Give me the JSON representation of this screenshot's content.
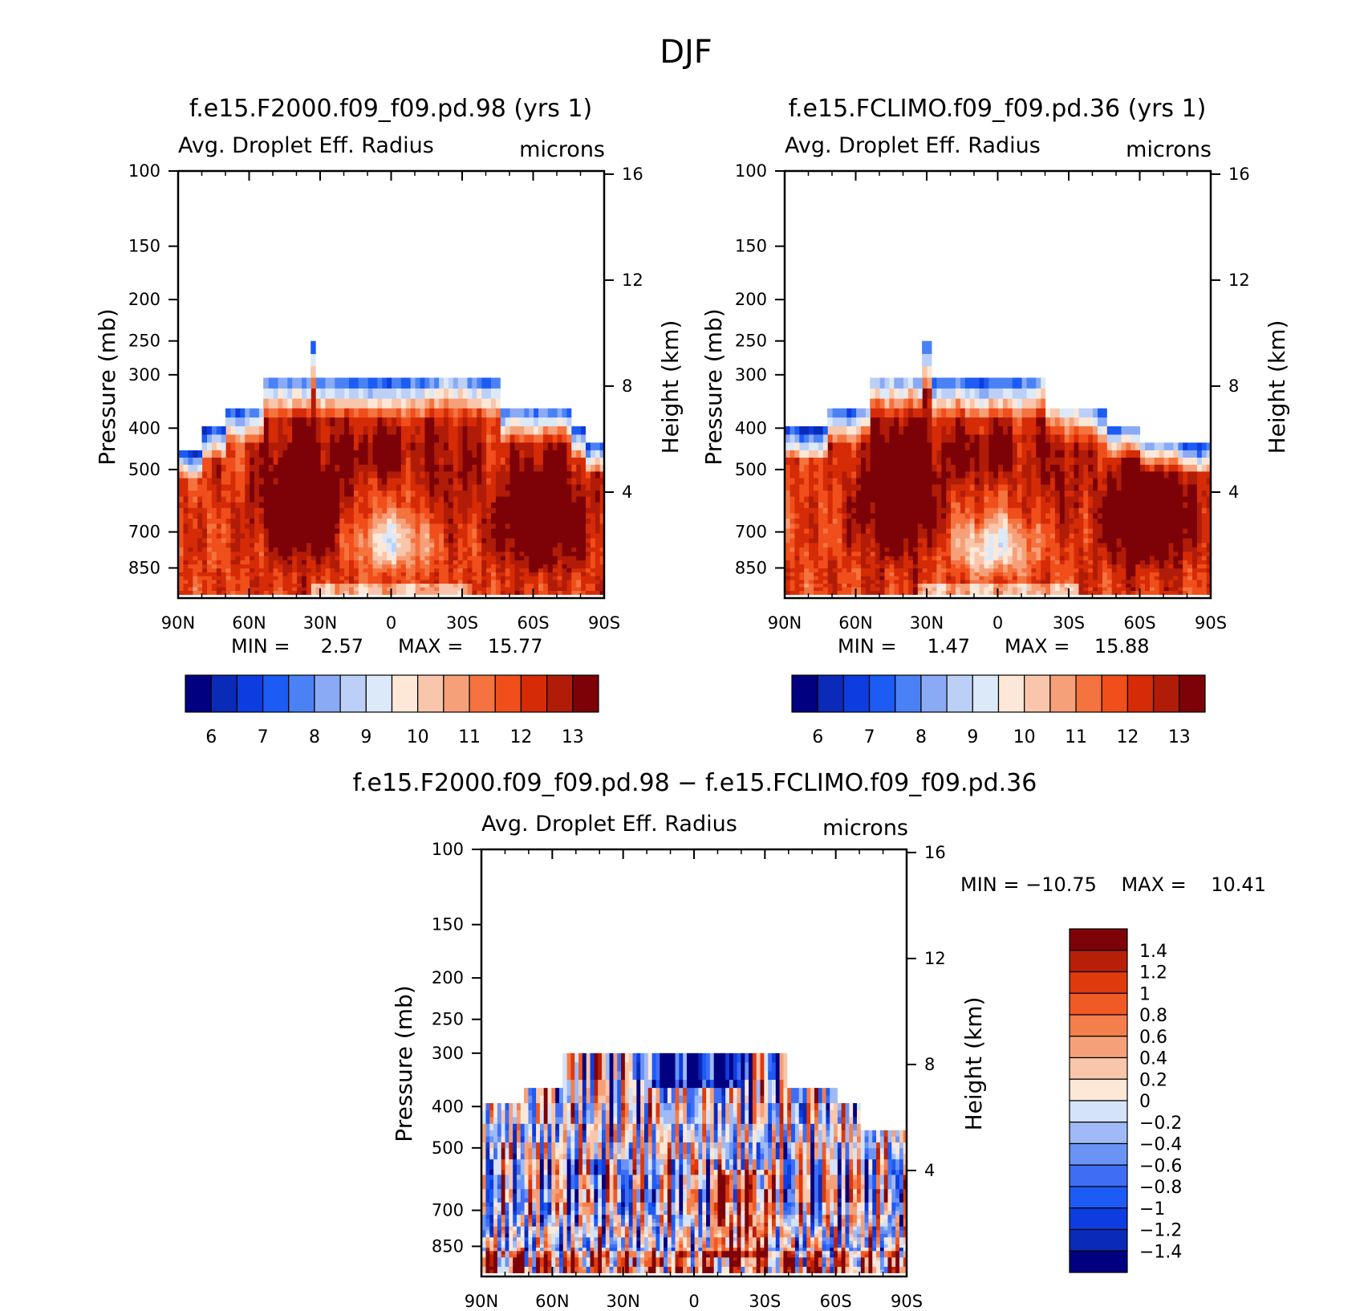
{
  "figure": {
    "title": "DJF",
    "colors": {
      "abs_scale": [
        "#000080",
        "#0a2ab8",
        "#0d3de0",
        "#1c5cf5",
        "#4a82f5",
        "#8aaaf5",
        "#bcd0f7",
        "#dce9f8",
        "#fde8d8",
        "#f9c6ab",
        "#f6a07a",
        "#f4733f",
        "#f04e1b",
        "#d52b07",
        "#b01c08",
        "#7d0208"
      ],
      "diff_scale": [
        "#000080",
        "#0a2ab8",
        "#0d3de0",
        "#1c5cf5",
        "#3f6ef5",
        "#6a93f5",
        "#9fbaf6",
        "#d4e3f8",
        "#fde8d8",
        "#f9c6ab",
        "#f6a07a",
        "#f47e4c",
        "#f05a25",
        "#de3a0c",
        "#b81f08",
        "#7d0208"
      ]
    }
  },
  "chart_data": [
    {
      "type": "heatmap",
      "id": "panel-1",
      "title": "f.e15.F2000.f09_f09.pd.98 (yrs 1)",
      "left_label": "Avg. Droplet Eff. Radius",
      "right_label": "microns",
      "ylabel": "Pressure (mb)",
      "y2label": "Height (km)",
      "xticks": [
        "90N",
        "60N",
        "30N",
        "0",
        "30S",
        "60S",
        "90S"
      ],
      "yticks": [
        100,
        150,
        200,
        250,
        300,
        400,
        500,
        700,
        850
      ],
      "y2ticks": [
        16,
        12,
        8,
        4
      ],
      "ylim": [
        100,
        1000
      ],
      "xlim": [
        90,
        -90
      ],
      "min_text": "MIN =     2.57",
      "max_text": "MAX =    15.77",
      "min": 2.57,
      "max": 15.77,
      "colorbar_labels": [
        "6",
        "7",
        "8",
        "9",
        "10",
        "11",
        "12",
        "13"
      ],
      "field": {
        "cloud_top_mb": [
          [
            -90,
            -82,
            440
          ],
          [
            -82,
            -75,
            400
          ],
          [
            -75,
            -45,
            355
          ],
          [
            -45,
            -20,
            300
          ],
          [
            -20,
            33,
            300
          ],
          [
            33,
            35,
            250
          ],
          [
            35,
            55,
            300
          ],
          [
            55,
            70,
            355
          ],
          [
            70,
            80,
            400
          ],
          [
            80,
            90,
            450
          ]
        ],
        "blobs": [
          {
            "lat": -63,
            "p": 650,
            "value": 14.5,
            "wlat": 18,
            "wp": 180
          },
          {
            "lat": 38,
            "p": 600,
            "value": 14.5,
            "wlat": 17,
            "wp": 190
          },
          {
            "lat": 0,
            "p": 740,
            "value": 9.0,
            "wlat": 14,
            "wp": 110
          },
          {
            "lat": 5,
            "p": 460,
            "value": 13.0,
            "wlat": 20,
            "wp": 70
          },
          {
            "lat": -25,
            "p": 500,
            "value": 12.6,
            "wlat": 12,
            "wp": 150
          }
        ],
        "base_value": 11.5
      }
    },
    {
      "type": "heatmap",
      "id": "panel-2",
      "title": "f.e15.FCLIMO.f09_f09.pd.36 (yrs 1)",
      "left_label": "Avg. Droplet Eff. Radius",
      "right_label": "microns",
      "ylabel": "Pressure (mb)",
      "y2label": "Height (km)",
      "xticks": [
        "90N",
        "60N",
        "30N",
        "0",
        "30S",
        "60S",
        "90S"
      ],
      "yticks": [
        100,
        150,
        200,
        250,
        300,
        400,
        500,
        700,
        850
      ],
      "y2ticks": [
        16,
        12,
        8,
        4
      ],
      "ylim": [
        100,
        1000
      ],
      "xlim": [
        90,
        -90
      ],
      "min_text": "MIN =     1.47",
      "max_text": "MAX =    15.88",
      "min": 1.47,
      "max": 15.88,
      "colorbar_labels": [
        "6",
        "7",
        "8",
        "9",
        "10",
        "11",
        "12",
        "13"
      ],
      "field": {
        "cloud_top_mb": [
          [
            -90,
            -60,
            440
          ],
          [
            -60,
            -45,
            400
          ],
          [
            -45,
            -20,
            355
          ],
          [
            -20,
            28,
            300
          ],
          [
            28,
            33,
            250
          ],
          [
            33,
            55,
            300
          ],
          [
            55,
            72,
            355
          ],
          [
            72,
            90,
            400
          ]
        ],
        "blobs": [
          {
            "lat": -63,
            "p": 650,
            "value": 14.5,
            "wlat": 18,
            "wp": 180
          },
          {
            "lat": 42,
            "p": 580,
            "value": 14.5,
            "wlat": 16,
            "wp": 200
          },
          {
            "lat": 2,
            "p": 760,
            "value": 8.8,
            "wlat": 16,
            "wp": 110
          },
          {
            "lat": 8,
            "p": 460,
            "value": 13.0,
            "wlat": 20,
            "wp": 70
          },
          {
            "lat": -25,
            "p": 500,
            "value": 12.6,
            "wlat": 12,
            "wp": 150
          }
        ],
        "base_value": 11.5
      }
    },
    {
      "type": "heatmap",
      "id": "panel-3",
      "title": "f.e15.F2000.f09_f09.pd.98 − f.e15.FCLIMO.f09_f09.pd.36",
      "left_label": "Avg. Droplet Eff. Radius",
      "right_label": "microns",
      "ylabel": "Pressure (mb)",
      "y2label": "Height (km)",
      "xticks": [
        "90N",
        "60N",
        "30N",
        "0",
        "30S",
        "60S",
        "90S"
      ],
      "yticks": [
        100,
        150,
        200,
        250,
        300,
        400,
        500,
        700,
        850
      ],
      "y2ticks": [
        16,
        12,
        8,
        4
      ],
      "ylim": [
        100,
        1000
      ],
      "xlim": [
        90,
        -90
      ],
      "minmax_text": "MIN = −10.75    MAX =    10.41",
      "min": -10.75,
      "max": 10.41,
      "colorbar_labels": [
        "1.4",
        "1.2",
        "1",
        "0.8",
        "0.6",
        "0.4",
        "0.2",
        "0",
        "−0.2",
        "−0.4",
        "−0.6",
        "−0.8",
        "−1",
        "−1.2",
        "−1.4"
      ],
      "field": {
        "cloud_top_mb": [
          [
            -90,
            -70,
            460
          ],
          [
            -70,
            -60,
            400
          ],
          [
            -60,
            -40,
            355
          ],
          [
            -40,
            55,
            300
          ],
          [
            55,
            72,
            355
          ],
          [
            72,
            90,
            400
          ]
        ]
      }
    }
  ]
}
